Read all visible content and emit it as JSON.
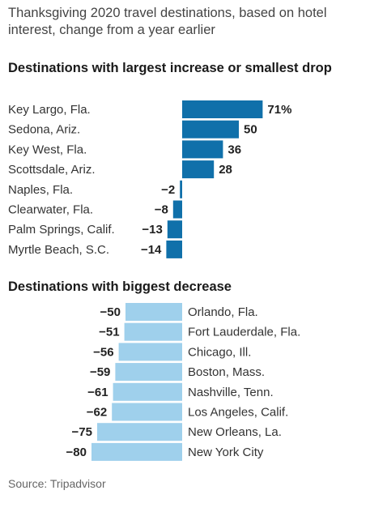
{
  "subtitle": "Thanksgiving 2020 travel destinations, based on hotel interest, change from a year earlier",
  "source": "Source: Tripadvisor",
  "colors": {
    "increase_bar": "#1070aa",
    "decrease_bar": "#9fd0ec",
    "label": "#222222"
  },
  "chart_data": [
    {
      "type": "bar",
      "orientation": "horizontal",
      "title": "Destinations with largest increase or smallest drop",
      "unit_suffix_first_label": "%",
      "categories": [
        "Key Largo, Fla.",
        "Sedona, Ariz.",
        "Key West, Fla.",
        "Scottsdale, Ariz.",
        "Naples, Fla.",
        "Clearwater, Fla.",
        "Palm Springs, Calif.",
        "Myrtle Beach, S.C."
      ],
      "values": [
        71,
        50,
        36,
        28,
        -2,
        -8,
        -13,
        -14
      ],
      "value_labels": [
        "71%",
        "50",
        "36",
        "28",
        "−2",
        "−8",
        "−13",
        "−14"
      ]
    },
    {
      "type": "bar",
      "orientation": "horizontal",
      "title": "Destinations with biggest decrease",
      "categories": [
        "Orlando, Fla.",
        "Fort Lauderdale, Fla.",
        "Chicago, Ill.",
        "Boston, Mass.",
        "Nashville, Tenn.",
        "Los Angeles, Calif.",
        "New Orleans, La.",
        "New York City"
      ],
      "values": [
        -50,
        -51,
        -56,
        -59,
        -61,
        -62,
        -75,
        -80
      ],
      "value_labels": [
        "−50",
        "−51",
        "−56",
        "−59",
        "−61",
        "−62",
        "−75",
        "−80"
      ]
    }
  ]
}
